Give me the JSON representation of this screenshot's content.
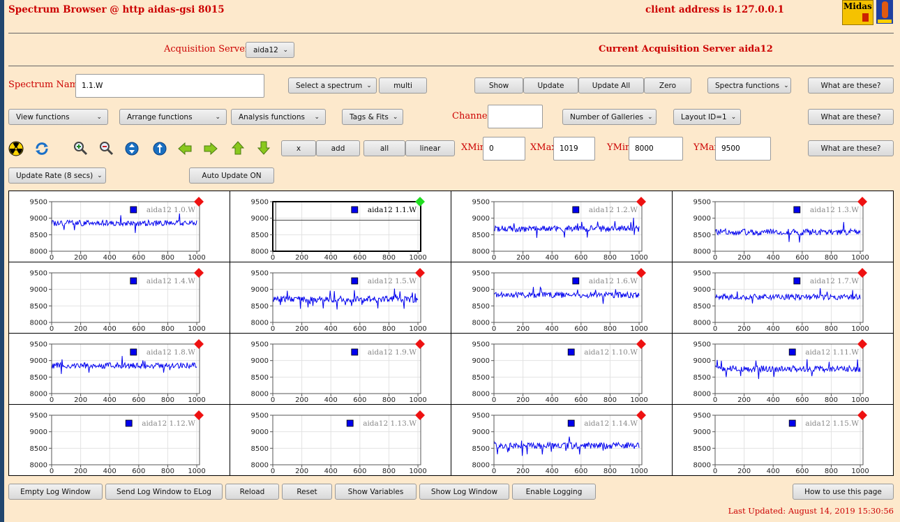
{
  "header": {
    "title": "Spectrum Browser @ http aidas-gsi 8015",
    "client_address": "client address is 127.0.0.1",
    "logo_text": "Midas"
  },
  "acquisition": {
    "servers_label": "Acquisition Servers",
    "server_select": "aida12",
    "current_label": "Current Acquisition Server aida12"
  },
  "row1": {
    "spectrum_label": "Spectrum Name:",
    "spectrum_value": "1.1.W",
    "select_spectrum": "Select a spectrum",
    "multi": "multi",
    "show": "Show",
    "update": "Update",
    "update_all": "Update All",
    "zero": "Zero",
    "spectra_functions": "Spectra functions",
    "what": "What are these?"
  },
  "row2": {
    "view_functions": "View functions",
    "arrange_functions": "Arrange functions",
    "analysis_functions": "Analysis functions",
    "tags_fits": "Tags & Fits",
    "channel_label": "Channel:",
    "channel_value": "",
    "galleries": "Number of Galleries",
    "layout": "Layout ID=1",
    "what": "What are these?"
  },
  "row3": {
    "icons": [
      "radiation-icon",
      "refresh-icon",
      "zoom-in-icon",
      "zoom-out-icon",
      "expand-vertical-icon",
      "expand-vertical-alt-icon",
      "arrow-left-icon",
      "arrow-right-icon",
      "arrow-up-icon",
      "arrow-down-icon"
    ],
    "x": "x",
    "add": "add",
    "all": "all",
    "linear": "linear",
    "xmin_label": "XMin",
    "xmin": "0",
    "xmax_label": "XMax",
    "xmax": "1019",
    "ymin_label": "YMin",
    "ymin": "8000",
    "ymax_label": "YMax",
    "ymax": "9500",
    "what": "What are these?"
  },
  "row4": {
    "update_rate": "Update Rate (8 secs)",
    "auto_update": "Auto Update ON"
  },
  "colors": {
    "line": "#0000ee",
    "selected_marker": "#22dd22",
    "marker": "#ee1111",
    "label_text": "#cc0000"
  },
  "chart_data": {
    "type": "line",
    "xlim": [
      0,
      1019
    ],
    "ylim": [
      8000,
      9500
    ],
    "x_ticks": [
      "0",
      "200",
      "400",
      "600",
      "800",
      "1000"
    ],
    "y_ticks": [
      "9500",
      "9000",
      "8500",
      "8000"
    ],
    "grid": true,
    "legend_placement": "top-right",
    "spectra": [
      {
        "name": "aida12 1.0.W",
        "has_data": true,
        "level": 8850,
        "noise": 110,
        "selected": false
      },
      {
        "name": "aida12 1.1.W",
        "has_data": false,
        "level": 8940,
        "noise": 0,
        "selected": true
      },
      {
        "name": "aida12 1.2.W",
        "has_data": true,
        "level": 8680,
        "noise": 120,
        "selected": false
      },
      {
        "name": "aida12 1.3.W",
        "has_data": true,
        "level": 8580,
        "noise": 120,
        "selected": false
      },
      {
        "name": "aida12 1.4.W",
        "has_data": false,
        "level": 0,
        "noise": 0,
        "selected": false
      },
      {
        "name": "aida12 1.5.W",
        "has_data": true,
        "level": 8700,
        "noise": 120,
        "selected": false
      },
      {
        "name": "aida12 1.6.W",
        "has_data": true,
        "level": 8830,
        "noise": 110,
        "selected": false
      },
      {
        "name": "aida12 1.7.W",
        "has_data": true,
        "level": 8770,
        "noise": 110,
        "selected": false
      },
      {
        "name": "aida12 1.8.W",
        "has_data": true,
        "level": 8850,
        "noise": 110,
        "selected": false
      },
      {
        "name": "aida12 1.9.W",
        "has_data": false,
        "level": 0,
        "noise": 0,
        "selected": false
      },
      {
        "name": "aida12 1.10.W",
        "has_data": false,
        "level": 0,
        "noise": 0,
        "selected": false
      },
      {
        "name": "aida12 1.11.W",
        "has_data": true,
        "level": 8750,
        "noise": 120,
        "selected": false
      },
      {
        "name": "aida12 1.12.W",
        "has_data": false,
        "level": 0,
        "noise": 0,
        "selected": false
      },
      {
        "name": "aida12 1.13.W",
        "has_data": false,
        "level": 0,
        "noise": 0,
        "selected": false
      },
      {
        "name": "aida12 1.14.W",
        "has_data": true,
        "level": 8580,
        "noise": 120,
        "selected": false
      },
      {
        "name": "aida12 1.15.W",
        "has_data": false,
        "level": 0,
        "noise": 0,
        "selected": false
      }
    ]
  },
  "bottom": {
    "buttons": [
      "Empty Log Window",
      "Send Log Window to ELog",
      "Reload",
      "Reset",
      "Show Variables",
      "Show Log Window",
      "Enable Logging"
    ],
    "how_to": "How to use this page",
    "last_updated": "Last Updated: August 14, 2019 15:30:56"
  }
}
